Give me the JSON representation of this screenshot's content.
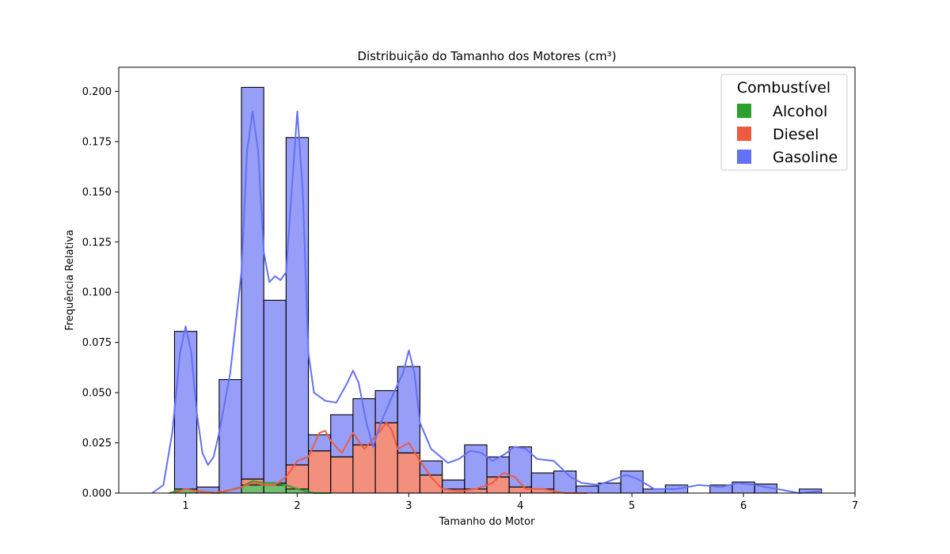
{
  "chart_data": {
    "type": "bar",
    "subtype": "stacked-histogram-with-kde",
    "title": "Distribuição do Tamanho dos Motores (cm³)",
    "xlabel": "Tamanho do Motor",
    "ylabel": "Frequência Relativa",
    "xlim": [
      0.4,
      7.0
    ],
    "ylim": [
      0.0,
      0.212
    ],
    "xticks": [
      "1",
      "2",
      "3",
      "4",
      "5",
      "6",
      "7"
    ],
    "yticks": [
      "0.000",
      "0.025",
      "0.050",
      "0.075",
      "0.100",
      "0.125",
      "0.150",
      "0.175",
      "0.200"
    ],
    "grid": false,
    "legend": {
      "title": "Combustível",
      "placement": "top-right",
      "entries": [
        "Alcohol",
        "Diesel",
        "Gasoline"
      ]
    },
    "bin_edges": [
      0.9,
      1.1,
      1.3,
      1.5,
      1.7,
      1.9,
      2.1,
      2.3,
      2.5,
      2.7,
      2.9,
      3.1,
      3.3,
      3.5,
      3.7,
      3.9,
      4.1,
      4.3,
      4.5,
      4.7,
      4.9,
      5.1,
      5.3,
      5.5,
      5.7,
      5.9,
      6.1,
      6.3,
      6.5,
      6.7
    ],
    "series": [
      {
        "name": "Alcohol",
        "color": "#2ca02c",
        "values": [
          0.002,
          0.0,
          0.0,
          0.004,
          0.004,
          0.002,
          0.0,
          0.0,
          0.0,
          0.0,
          0.0,
          0.0,
          0.0,
          0.0,
          0.0,
          0.0,
          0.0,
          0.0,
          0.0,
          0.0,
          0.0,
          0.0,
          0.0,
          0.0,
          0.0,
          0.0,
          0.0,
          0.0,
          0.0
        ]
      },
      {
        "name": "Diesel",
        "color": "#ee5a3f",
        "values": [
          0.0,
          0.0,
          0.0,
          0.003,
          0.001,
          0.012,
          0.021,
          0.018,
          0.024,
          0.035,
          0.02,
          0.009,
          0.002,
          0.002,
          0.008,
          0.003,
          0.002,
          0.0,
          0.0,
          0.0,
          0.0,
          0.0,
          0.0,
          0.0,
          0.0,
          0.0,
          0.0,
          0.0,
          0.0
        ]
      },
      {
        "name": "Gasoline",
        "color": "#6470f5",
        "values": [
          0.0785,
          0.003,
          0.0565,
          0.195,
          0.091,
          0.163,
          0.008,
          0.021,
          0.023,
          0.016,
          0.043,
          0.007,
          0.0045,
          0.022,
          0.01,
          0.02,
          0.008,
          0.011,
          0.0035,
          0.005,
          0.011,
          0.002,
          0.004,
          0.0,
          0.004,
          0.0055,
          0.0045,
          0.0,
          0.002
        ]
      }
    ],
    "kde": {
      "Gasoline": [
        [
          0.7,
          0.0
        ],
        [
          0.8,
          0.004
        ],
        [
          0.88,
          0.03
        ],
        [
          0.95,
          0.07
        ],
        [
          1.0,
          0.083
        ],
        [
          1.05,
          0.07
        ],
        [
          1.1,
          0.04
        ],
        [
          1.15,
          0.02
        ],
        [
          1.2,
          0.014
        ],
        [
          1.25,
          0.018
        ],
        [
          1.3,
          0.03
        ],
        [
          1.4,
          0.06
        ],
        [
          1.5,
          0.11
        ],
        [
          1.55,
          0.17
        ],
        [
          1.6,
          0.19
        ],
        [
          1.65,
          0.17
        ],
        [
          1.7,
          0.12
        ],
        [
          1.75,
          0.105
        ],
        [
          1.8,
          0.108
        ],
        [
          1.85,
          0.106
        ],
        [
          1.9,
          0.11
        ],
        [
          1.95,
          0.15
        ],
        [
          2.0,
          0.19
        ],
        [
          2.05,
          0.15
        ],
        [
          2.1,
          0.07
        ],
        [
          2.15,
          0.05
        ],
        [
          2.25,
          0.046
        ],
        [
          2.35,
          0.045
        ],
        [
          2.45,
          0.055
        ],
        [
          2.5,
          0.061
        ],
        [
          2.55,
          0.055
        ],
        [
          2.62,
          0.035
        ],
        [
          2.68,
          0.023
        ],
        [
          2.75,
          0.035
        ],
        [
          2.85,
          0.048
        ],
        [
          2.95,
          0.06
        ],
        [
          3.0,
          0.071
        ],
        [
          3.05,
          0.06
        ],
        [
          3.1,
          0.035
        ],
        [
          3.2,
          0.022
        ],
        [
          3.35,
          0.015
        ],
        [
          3.45,
          0.017
        ],
        [
          3.55,
          0.021
        ],
        [
          3.65,
          0.02
        ],
        [
          3.75,
          0.016
        ],
        [
          3.85,
          0.019
        ],
        [
          3.95,
          0.023
        ],
        [
          4.05,
          0.022
        ],
        [
          4.15,
          0.017
        ],
        [
          4.3,
          0.016
        ],
        [
          4.45,
          0.008
        ],
        [
          4.55,
          0.005
        ],
        [
          4.7,
          0.004
        ],
        [
          4.85,
          0.007
        ],
        [
          4.95,
          0.009
        ],
        [
          5.05,
          0.007
        ],
        [
          5.2,
          0.002
        ],
        [
          5.4,
          0.002
        ],
        [
          5.6,
          0.004
        ],
        [
          5.8,
          0.003
        ],
        [
          5.95,
          0.005
        ],
        [
          6.1,
          0.004
        ],
        [
          6.3,
          0.002
        ],
        [
          6.5,
          0.0
        ],
        [
          6.7,
          0.001
        ]
      ],
      "Diesel": [
        [
          0.9,
          0.0
        ],
        [
          1.0,
          0.002
        ],
        [
          1.1,
          0.001
        ],
        [
          1.25,
          0.0
        ],
        [
          1.45,
          0.002
        ],
        [
          1.6,
          0.005
        ],
        [
          1.7,
          0.004
        ],
        [
          1.8,
          0.004
        ],
        [
          1.9,
          0.008
        ],
        [
          2.0,
          0.016
        ],
        [
          2.1,
          0.018
        ],
        [
          2.2,
          0.03
        ],
        [
          2.25,
          0.031
        ],
        [
          2.3,
          0.026
        ],
        [
          2.4,
          0.02
        ],
        [
          2.5,
          0.03
        ],
        [
          2.6,
          0.022
        ],
        [
          2.7,
          0.028
        ],
        [
          2.8,
          0.035
        ],
        [
          2.85,
          0.031
        ],
        [
          2.9,
          0.022
        ],
        [
          3.0,
          0.025
        ],
        [
          3.1,
          0.016
        ],
        [
          3.2,
          0.008
        ],
        [
          3.3,
          0.002
        ],
        [
          3.45,
          0.001
        ],
        [
          3.6,
          0.002
        ],
        [
          3.75,
          0.005
        ],
        [
          3.85,
          0.01
        ],
        [
          3.95,
          0.008
        ],
        [
          4.05,
          0.002
        ],
        [
          4.2,
          0.002
        ],
        [
          4.4,
          0.0
        ],
        [
          4.6,
          0.0
        ]
      ],
      "Alcohol": [
        [
          0.85,
          0.0
        ],
        [
          1.0,
          0.002
        ],
        [
          1.1,
          0.001
        ],
        [
          1.3,
          0.0
        ],
        [
          1.5,
          0.003
        ],
        [
          1.6,
          0.006
        ],
        [
          1.7,
          0.005
        ],
        [
          1.8,
          0.005
        ],
        [
          1.9,
          0.004
        ],
        [
          2.0,
          0.002
        ],
        [
          2.15,
          0.0
        ],
        [
          2.3,
          0.0
        ]
      ]
    }
  }
}
